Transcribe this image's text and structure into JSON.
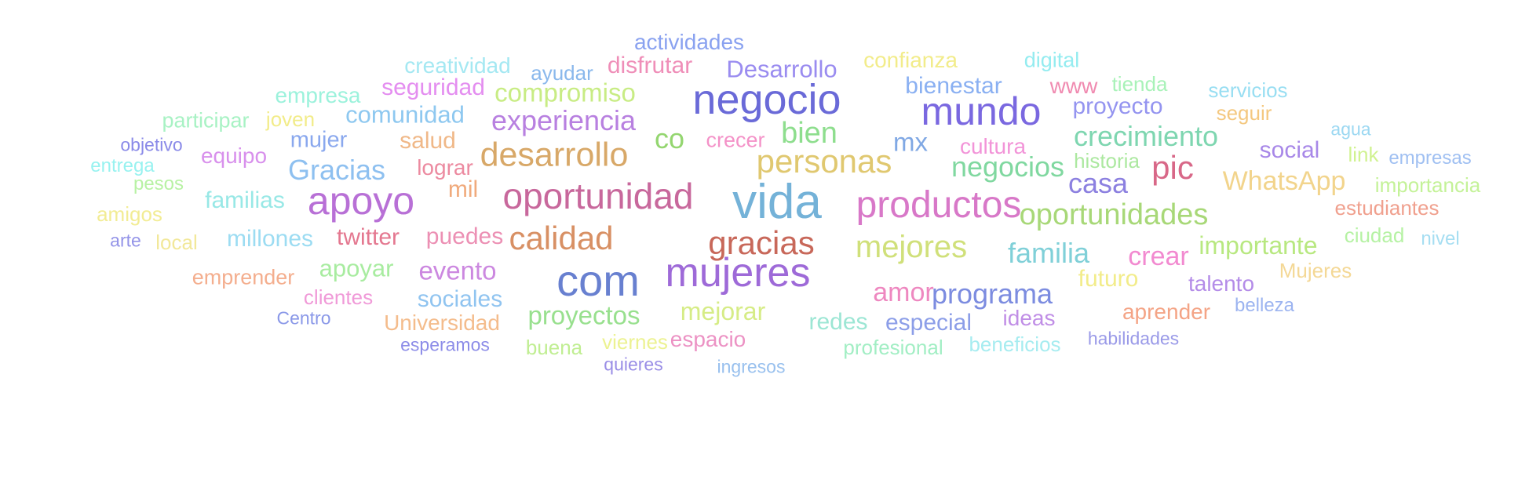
{
  "words": [
    {
      "text": "actividades",
      "color": "#8aa2f0",
      "weight": 28
    },
    {
      "text": "creatividad",
      "color": "#a4e8f2",
      "weight": 28
    },
    {
      "text": "ayudar",
      "color": "#8ab8ec",
      "weight": 26
    },
    {
      "text": "disfrutar",
      "color": "#ef8eb8",
      "weight": 30
    },
    {
      "text": "Desarrollo",
      "color": "#9a8cf0",
      "weight": 31
    },
    {
      "text": "confianza",
      "color": "#f2ec8a",
      "weight": 28
    },
    {
      "text": "digital",
      "color": "#94ecf0",
      "weight": 27
    },
    {
      "text": "empresa",
      "color": "#9cf2dc",
      "weight": 28
    },
    {
      "text": "seguridad",
      "color": "#e48ef0",
      "weight": 30
    },
    {
      "text": "compromiso",
      "color": "#c8ec84",
      "weight": 33
    },
    {
      "text": "negocio",
      "color": "#6a6ad8",
      "weight": 54
    },
    {
      "text": "bienestar",
      "color": "#8ab0f2",
      "weight": 30
    },
    {
      "text": "www",
      "color": "#f08ab0",
      "weight": 28
    },
    {
      "text": "tienda",
      "color": "#a8f2b8",
      "weight": 26
    },
    {
      "text": "servicios",
      "color": "#98def2",
      "weight": 26
    },
    {
      "text": "mundo",
      "color": "#7a68e0",
      "weight": 50
    },
    {
      "text": "proyecto",
      "color": "#9494f0",
      "weight": 30
    },
    {
      "text": "participar",
      "color": "#a8f2c4",
      "weight": 27
    },
    {
      "text": "joven",
      "color": "#f2ec8a",
      "weight": 26
    },
    {
      "text": "comunidad",
      "color": "#8ec8f0",
      "weight": 31
    },
    {
      "text": "experiencia",
      "color": "#b880e0",
      "weight": 36
    },
    {
      "text": "seguir",
      "color": "#f4c880",
      "weight": 26
    },
    {
      "text": "objetivo",
      "color": "#8a8ae8",
      "weight": 23
    },
    {
      "text": "mujer",
      "color": "#8aa8ee",
      "weight": 29
    },
    {
      "text": "salud",
      "color": "#f0b888",
      "weight": 30
    },
    {
      "text": "co",
      "color": "#94d670",
      "weight": 36
    },
    {
      "text": "crecer",
      "color": "#f492c8",
      "weight": 27
    },
    {
      "text": "bien",
      "color": "#8ede8e",
      "weight": 38
    },
    {
      "text": "mx",
      "color": "#80a8e4",
      "weight": 33
    },
    {
      "text": "cultura",
      "color": "#f294d8",
      "weight": 28
    },
    {
      "text": "crecimiento",
      "color": "#7ed6b0",
      "weight": 36
    },
    {
      "text": "agua",
      "color": "#9cd8f2",
      "weight": 23
    },
    {
      "text": "equipo",
      "color": "#d890ec",
      "weight": 28
    },
    {
      "text": "desarrollo",
      "color": "#d8a868",
      "weight": 43
    },
    {
      "text": "social",
      "color": "#a888e8",
      "weight": 30
    },
    {
      "text": "link",
      "color": "#d0f290",
      "weight": 26
    },
    {
      "text": "entrega",
      "color": "#98f2f0",
      "weight": 24
    },
    {
      "text": "Gracias",
      "color": "#8ec0f0",
      "weight": 36
    },
    {
      "text": "lograr",
      "color": "#ec8aa0",
      "weight": 28
    },
    {
      "text": "personas",
      "color": "#e0c870",
      "weight": 42
    },
    {
      "text": "negocios",
      "color": "#80d8a0",
      "weight": 36
    },
    {
      "text": "historia",
      "color": "#ace8a0",
      "weight": 26
    },
    {
      "text": "pic",
      "color": "#d86888",
      "weight": 42
    },
    {
      "text": "empresas",
      "color": "#a0c0f2",
      "weight": 24
    },
    {
      "text": "pesos",
      "color": "#b8f2a4",
      "weight": 24
    },
    {
      "text": "mil",
      "color": "#f0aa7c",
      "weight": 30
    },
    {
      "text": "casa",
      "color": "#8c80e0",
      "weight": 36
    },
    {
      "text": "WhatsApp",
      "color": "#f2d48c",
      "weight": 34
    },
    {
      "text": "importancia",
      "color": "#c4f298",
      "weight": 26
    },
    {
      "text": "familias",
      "color": "#98e8e6",
      "weight": 30
    },
    {
      "text": "apoyo",
      "color": "#b870d6",
      "weight": 50
    },
    {
      "text": "oportunidad",
      "color": "#c8689c",
      "weight": 46
    },
    {
      "text": "vida",
      "color": "#74b2d8",
      "weight": 62
    },
    {
      "text": "productos",
      "color": "#d878c8",
      "weight": 48
    },
    {
      "text": "amigos",
      "color": "#f2ec94",
      "weight": 26
    },
    {
      "text": "oportunidades",
      "color": "#a8d878",
      "weight": 38
    },
    {
      "text": "estudiantes",
      "color": "#f0a08e",
      "weight": 26
    },
    {
      "text": "arte",
      "color": "#9494e8",
      "weight": 23
    },
    {
      "text": "local",
      "color": "#f2e89a",
      "weight": 26
    },
    {
      "text": "millones",
      "color": "#9cdcf2",
      "weight": 30
    },
    {
      "text": "twitter",
      "color": "#e47890",
      "weight": 30
    },
    {
      "text": "puedes",
      "color": "#ec90b4",
      "weight": 30
    },
    {
      "text": "calidad",
      "color": "#d89064",
      "weight": 42
    },
    {
      "text": "gracias",
      "color": "#c8685a",
      "weight": 42
    },
    {
      "text": "mejores",
      "color": "#d0e07a",
      "weight": 40
    },
    {
      "text": "ciudad",
      "color": "#b6f2a4",
      "weight": 26
    },
    {
      "text": "nivel",
      "color": "#a6def2",
      "weight": 24
    },
    {
      "text": "familia",
      "color": "#80d0d8",
      "weight": 36
    },
    {
      "text": "crear",
      "color": "#f28ad0",
      "weight": 34
    },
    {
      "text": "importante",
      "color": "#b8e880",
      "weight": 32
    },
    {
      "text": "apoyar",
      "color": "#a8eca0",
      "weight": 31
    },
    {
      "text": "evento",
      "color": "#cc88e0",
      "weight": 33
    },
    {
      "text": "emprender",
      "color": "#f4ae8e",
      "weight": 27
    },
    {
      "text": "com",
      "color": "#6880d0",
      "weight": 56
    },
    {
      "text": "mujeres",
      "color": "#9e6ad8",
      "weight": 52
    },
    {
      "text": "Mujeres",
      "color": "#f4d896",
      "weight": 26
    },
    {
      "text": "futuro",
      "color": "#f2ec8a",
      "weight": 30
    },
    {
      "text": "talento",
      "color": "#b48ce8",
      "weight": 28
    },
    {
      "text": "amor",
      "color": "#ee88c0",
      "weight": 34
    },
    {
      "text": "programa",
      "color": "#7c8ce0",
      "weight": 36
    },
    {
      "text": "clientes",
      "color": "#f09ad8",
      "weight": 26
    },
    {
      "text": "sociales",
      "color": "#90c4f0",
      "weight": 30
    },
    {
      "text": "mejorar",
      "color": "#d6ec86",
      "weight": 32
    },
    {
      "text": "belleza",
      "color": "#9cb4f0",
      "weight": 24
    },
    {
      "text": "aprender",
      "color": "#f4a486",
      "weight": 28
    },
    {
      "text": "Centro",
      "color": "#8a98e8",
      "weight": 23
    },
    {
      "text": "Universidad",
      "color": "#f4bc8c",
      "weight": 28
    },
    {
      "text": "proyectos",
      "color": "#98e08e",
      "weight": 33
    },
    {
      "text": "redes",
      "color": "#9ce6d4",
      "weight": 30
    },
    {
      "text": "especial",
      "color": "#8c9ee8",
      "weight": 30
    },
    {
      "text": "ideas",
      "color": "#c08ee6",
      "weight": 28
    },
    {
      "text": "esperamos",
      "color": "#8c8ce8",
      "weight": 23
    },
    {
      "text": "buena",
      "color": "#c0ee92",
      "weight": 26
    },
    {
      "text": "viernes",
      "color": "#ecf292",
      "weight": 26
    },
    {
      "text": "espacio",
      "color": "#ec92c4",
      "weight": 28
    },
    {
      "text": "profesional",
      "color": "#a2eec4",
      "weight": 26
    },
    {
      "text": "beneficios",
      "color": "#a6ecf0",
      "weight": 26
    },
    {
      "text": "habilidades",
      "color": "#9a9ae8",
      "weight": 23
    },
    {
      "text": "quieres",
      "color": "#9a8ee6",
      "weight": 23
    },
    {
      "text": "ingresos",
      "color": "#98c0ee",
      "weight": 23
    }
  ]
}
